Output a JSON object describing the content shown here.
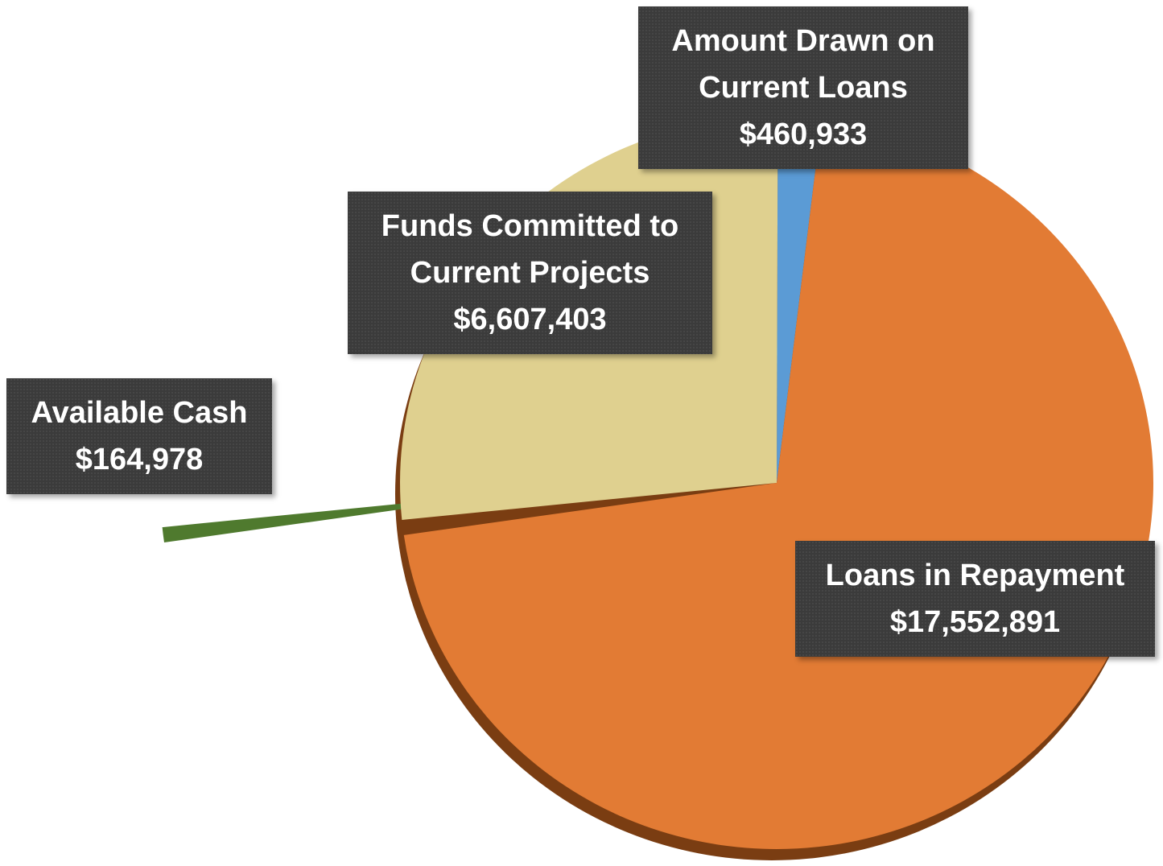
{
  "chart_data": {
    "type": "pie",
    "categories": [
      "Amount Drawn on Current Loans",
      "Loans in Repayment",
      "Available Cash",
      "Funds Committed to Current Projects"
    ],
    "values": [
      460933,
      17552891,
      164978,
      6607403
    ],
    "value_labels": [
      "$460,933",
      "$17,552,891",
      "$164,978",
      "$6,607,403"
    ],
    "colors": [
      "#5b9bd5",
      "#e27b34",
      "#4f7a2e",
      "#dfd08f"
    ],
    "exploded": [
      false,
      false,
      true,
      false
    ]
  }
}
